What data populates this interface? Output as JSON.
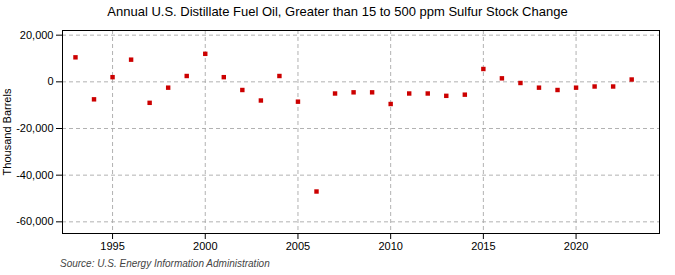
{
  "chart_data": {
    "type": "scatter",
    "title": "Annual U.S. Distillate Fuel Oil, Greater than 15 to 500 ppm Sulfur Stock Change",
    "ylabel": "Thousand Barrels",
    "caption": "Source: U.S. Energy Information Administration",
    "x": [
      1993,
      1994,
      1995,
      1996,
      1997,
      1998,
      1999,
      2000,
      2001,
      2002,
      2003,
      2004,
      2005,
      2006,
      2007,
      2008,
      2009,
      2010,
      2011,
      2012,
      2013,
      2014,
      2015,
      2016,
      2017,
      2018,
      2019,
      2020,
      2021,
      2022,
      2023
    ],
    "values": [
      10500,
      -7500,
      2000,
      9500,
      -9000,
      -2500,
      2500,
      12000,
      2000,
      -3500,
      -8000,
      2500,
      -8500,
      -47000,
      -5000,
      -4500,
      -4500,
      -9500,
      -5000,
      -5000,
      -6000,
      -5500,
      5500,
      1500,
      -500,
      -2500,
      -3500,
      -2500,
      -2000,
      -2000,
      1000
    ],
    "color": "#cc0000",
    "marker": "square",
    "xlim": [
      1992.3,
      2024.5
    ],
    "xticks": [
      1995,
      2000,
      2005,
      2010,
      2015,
      2020
    ],
    "ylim": [
      -65000,
      22000
    ],
    "yticks": [
      {
        "value": -60000,
        "label": "-60,000"
      },
      {
        "value": -40000,
        "label": "-40,000"
      },
      {
        "value": -20000,
        "label": "-20,000"
      },
      0,
      {
        "value": 20000,
        "label": "20,000"
      }
    ],
    "grid": true
  }
}
